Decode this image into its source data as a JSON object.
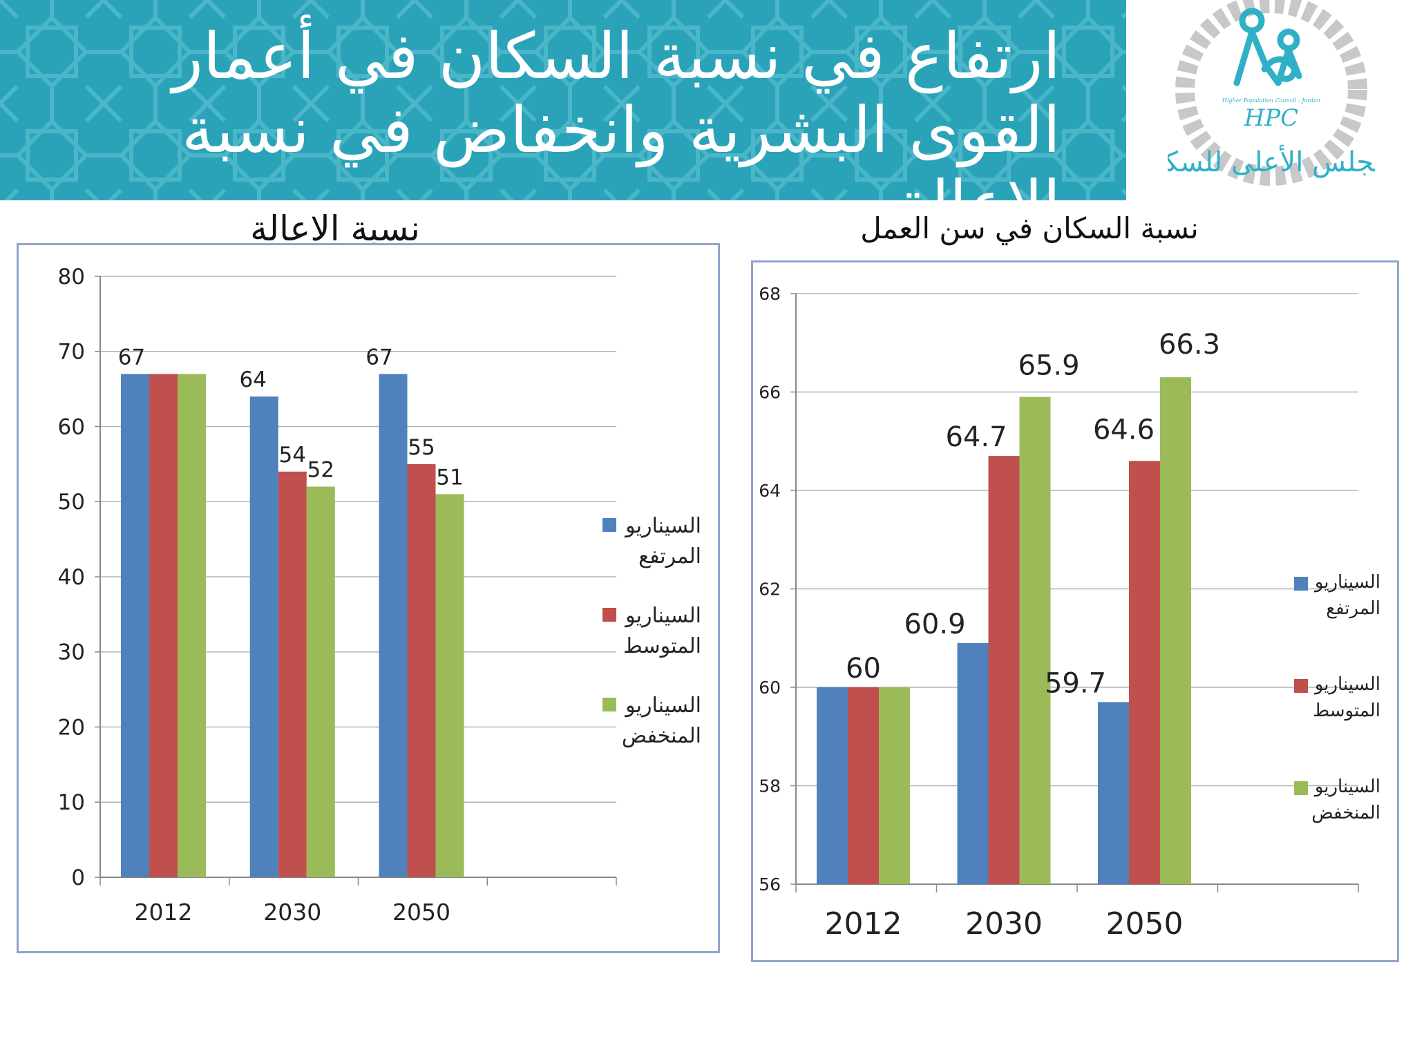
{
  "slide": {
    "title": "ارتفاع في نسبة السكان في أعمار القوى البشرية وانخفاض في نسبة الاعالة",
    "logo": {
      "icon": "hpc-logo",
      "text_en": "Higher Population Council - Jordan",
      "abbr": "HPC",
      "text_ar": "المجلس الأعلى للسكان"
    }
  },
  "colors": {
    "banner": "#2aa3b9",
    "series": [
      "#4f81bd",
      "#c0504d",
      "#9bbb59"
    ]
  },
  "chart_data": [
    {
      "type": "bar",
      "title": "نسبة الاعالة",
      "categories": [
        "2012",
        "2030",
        "2050"
      ],
      "series": [
        {
          "name": "السيناريو المرتفع",
          "values": [
            67,
            64,
            67
          ]
        },
        {
          "name": "السيناريو المتوسط",
          "values": [
            67,
            54,
            55
          ]
        },
        {
          "name": "السيناريو المنخفض",
          "values": [
            67,
            52,
            51
          ]
        }
      ],
      "data_labels": [
        {
          "category": "2012",
          "series": 0,
          "text": "67"
        },
        {
          "category": "2030",
          "series": 0,
          "text": "64"
        },
        {
          "category": "2030",
          "series": 1,
          "text": "54"
        },
        {
          "category": "2030",
          "series": 2,
          "text": "52"
        },
        {
          "category": "2050",
          "series": 0,
          "text": "67"
        },
        {
          "category": "2050",
          "series": 1,
          "text": "55"
        },
        {
          "category": "2050",
          "series": 2,
          "text": "51"
        }
      ],
      "ylim": [
        0,
        80
      ],
      "yticks": [
        "0",
        "10",
        "20",
        "30",
        "40",
        "50",
        "60",
        "70",
        "80"
      ],
      "xlabel": "",
      "ylabel": "",
      "grid": true,
      "legend": "right"
    },
    {
      "type": "bar",
      "title": "نسبة السكان في سن العمل",
      "categories": [
        "2012",
        "2030",
        "2050"
      ],
      "series": [
        {
          "name": "السيناريو المرتفع",
          "values": [
            60,
            60.9,
            59.7
          ]
        },
        {
          "name": "السيناريو المتوسط",
          "values": [
            60,
            64.7,
            64.6
          ]
        },
        {
          "name": "السيناريو المنخفض",
          "values": [
            60,
            65.9,
            66.3
          ]
        }
      ],
      "data_labels": [
        {
          "category": "2012",
          "series": 1,
          "text": "60"
        },
        {
          "category": "2030",
          "series": 0,
          "text": "60.9"
        },
        {
          "category": "2030",
          "series": 1,
          "text": "64.7"
        },
        {
          "category": "2030",
          "series": 2,
          "text": "65.9"
        },
        {
          "category": "2050",
          "series": 0,
          "text": "59.7"
        },
        {
          "category": "2050",
          "series": 1,
          "text": "64.6"
        },
        {
          "category": "2050",
          "series": 2,
          "text": "66.3"
        }
      ],
      "ylim": [
        56,
        68
      ],
      "yticks": [
        "56",
        "58",
        "60",
        "62",
        "64",
        "66",
        "68"
      ],
      "xlabel": "",
      "ylabel": "",
      "grid": true,
      "legend": "right"
    }
  ]
}
